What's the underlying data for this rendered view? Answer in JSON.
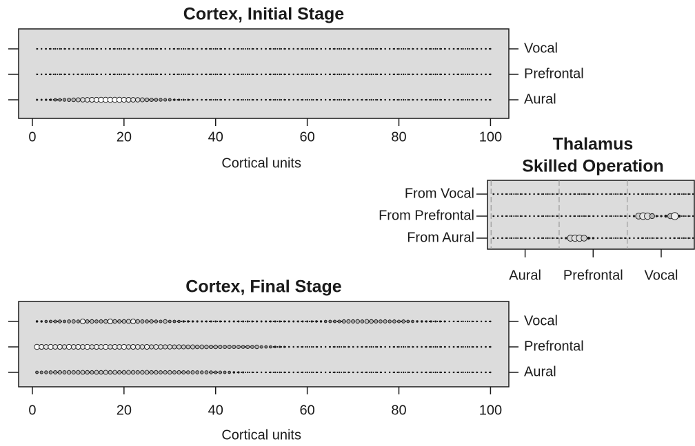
{
  "chart_data": [
    {
      "type": "dotplot",
      "title": "Cortex, Initial Stage",
      "x_label": "Cortical units",
      "xlim": [
        -3,
        104
      ],
      "xticks": [
        0,
        20,
        40,
        60,
        80,
        100
      ],
      "color_low": "#1a1a1a",
      "color_high": "#ffffff",
      "panel_color": "#dcdcdc",
      "x": [
        1,
        2,
        3,
        4,
        5,
        6,
        7,
        8,
        9,
        10,
        11,
        12,
        13,
        14,
        15,
        16,
        17,
        18,
        19,
        20,
        21,
        22,
        23,
        24,
        25,
        26,
        27,
        28,
        29,
        30,
        31,
        32,
        33,
        34,
        35,
        36,
        37,
        38,
        39,
        40,
        41,
        42,
        43,
        44,
        45,
        46,
        47,
        48,
        49,
        50,
        51,
        52,
        53,
        54,
        55,
        56,
        57,
        58,
        59,
        60,
        61,
        62,
        63,
        64,
        65,
        66,
        67,
        68,
        69,
        70,
        71,
        72,
        73,
        74,
        75,
        76,
        77,
        78,
        79,
        80,
        81,
        82,
        83,
        84,
        85,
        86,
        87,
        88,
        89,
        90,
        91,
        92,
        93,
        94,
        95,
        96,
        97,
        98,
        99,
        100
      ],
      "series": [
        {
          "name": "Aural",
          "values": [
            0.1,
            0.1,
            0.15,
            0.2,
            0.3,
            0.35,
            0.4,
            0.5,
            0.6,
            0.7,
            0.8,
            0.85,
            0.9,
            0.95,
            1,
            1,
            1,
            1,
            1,
            0.95,
            0.9,
            0.85,
            0.8,
            0.7,
            0.6,
            0.5,
            0.45,
            0.4,
            0.35,
            0.3,
            0.2,
            0.15,
            0.1,
            0.1,
            0.05,
            0,
            0,
            0,
            0,
            0,
            0,
            0,
            0,
            0,
            0,
            0,
            0,
            0,
            0,
            0,
            0,
            0,
            0,
            0,
            0,
            0,
            0,
            0,
            0,
            0,
            0,
            0,
            0,
            0,
            0,
            0,
            0,
            0,
            0,
            0,
            0,
            0,
            0,
            0,
            0,
            0,
            0,
            0,
            0,
            0,
            0,
            0,
            0,
            0,
            0,
            0,
            0,
            0,
            0,
            0,
            0,
            0,
            0,
            0,
            0,
            0,
            0,
            0,
            0,
            0
          ]
        },
        {
          "name": "Prefrontal",
          "values": [
            0,
            0,
            0,
            0,
            0,
            0,
            0,
            0,
            0,
            0,
            0,
            0,
            0,
            0,
            0,
            0,
            0,
            0,
            0,
            0,
            0,
            0,
            0,
            0,
            0,
            0,
            0,
            0,
            0,
            0,
            0,
            0,
            0,
            0,
            0,
            0,
            0,
            0,
            0,
            0,
            0,
            0,
            0,
            0,
            0,
            0,
            0,
            0,
            0,
            0,
            0,
            0,
            0,
            0,
            0,
            0,
            0,
            0,
            0,
            0,
            0,
            0,
            0,
            0,
            0,
            0,
            0,
            0,
            0,
            0,
            0,
            0,
            0,
            0,
            0,
            0,
            0,
            0,
            0,
            0,
            0,
            0,
            0,
            0,
            0,
            0,
            0,
            0,
            0,
            0,
            0,
            0,
            0,
            0,
            0,
            0,
            0,
            0,
            0,
            0
          ]
        },
        {
          "name": "Vocal",
          "values": [
            0,
            0,
            0,
            0,
            0,
            0,
            0,
            0,
            0,
            0,
            0,
            0,
            0,
            0,
            0,
            0,
            0,
            0,
            0,
            0,
            0,
            0,
            0,
            0,
            0,
            0,
            0,
            0,
            0,
            0,
            0,
            0,
            0,
            0,
            0,
            0,
            0,
            0,
            0,
            0,
            0,
            0,
            0,
            0,
            0,
            0,
            0,
            0,
            0,
            0,
            0,
            0,
            0,
            0,
            0,
            0,
            0,
            0,
            0,
            0,
            0,
            0,
            0,
            0,
            0,
            0,
            0,
            0,
            0,
            0,
            0,
            0,
            0,
            0,
            0,
            0,
            0,
            0,
            0,
            0,
            0,
            0,
            0,
            0,
            0,
            0,
            0,
            0,
            0,
            0,
            0,
            0,
            0,
            0,
            0,
            0,
            0,
            0,
            0,
            0
          ]
        }
      ]
    },
    {
      "type": "dotplot",
      "title": "Thalamus",
      "subtitle": "Skilled Operation",
      "xlim": [
        -0.3,
        45.3
      ],
      "x_groups": [
        "Aural",
        "Prefrontal",
        "Vocal"
      ],
      "color_low": "#1a1a1a",
      "color_high": "#ffffff",
      "panel_color": "#dcdcdc",
      "x": [
        1,
        2,
        3,
        4,
        5,
        6,
        7,
        8,
        9,
        10,
        11,
        12,
        13,
        14,
        15,
        16,
        17,
        18,
        19,
        20,
        21,
        22,
        23,
        24,
        25,
        26,
        27,
        28,
        29,
        30,
        31,
        32,
        33,
        34,
        35,
        36,
        37,
        38,
        39,
        40,
        41,
        42,
        43,
        44,
        45
      ],
      "series": [
        {
          "name": "From Aural",
          "values": [
            0,
            0,
            0,
            0,
            0,
            0,
            0,
            0,
            0,
            0,
            0,
            0,
            0,
            0,
            0,
            0,
            0.1,
            0.75,
            0.8,
            0.8,
            0.7,
            0.2,
            0.1,
            0,
            0,
            0,
            0,
            0,
            0,
            0,
            0,
            0,
            0,
            0,
            0,
            0,
            0,
            0,
            0,
            0,
            0,
            0,
            0,
            0,
            0
          ]
        },
        {
          "name": "From Prefrontal",
          "values": [
            0,
            0,
            0,
            0,
            0,
            0,
            0,
            0,
            0,
            0,
            0,
            0,
            0,
            0,
            0,
            0,
            0,
            0,
            0,
            0,
            0,
            0,
            0,
            0,
            0,
            0,
            0,
            0,
            0,
            0,
            0,
            0.1,
            0.7,
            0.85,
            0.8,
            0.55,
            0.1,
            0.1,
            0.2,
            0.6,
            0.9,
            0.2,
            0,
            0,
            0
          ]
        },
        {
          "name": "From Vocal",
          "values": [
            0,
            0,
            0,
            0,
            0,
            0,
            0,
            0,
            0,
            0,
            0,
            0,
            0,
            0,
            0,
            0,
            0,
            0,
            0,
            0,
            0,
            0,
            0,
            0,
            0,
            0,
            0,
            0,
            0,
            0,
            0,
            0,
            0,
            0,
            0,
            0,
            0,
            0,
            0,
            0,
            0,
            0,
            0,
            0,
            0
          ]
        }
      ]
    },
    {
      "type": "dotplot",
      "title": "Cortex, Final Stage",
      "x_label": "Cortical units",
      "xlim": [
        -3,
        104
      ],
      "xticks": [
        0,
        20,
        40,
        60,
        80,
        100
      ],
      "color_low": "#1a1a1a",
      "color_high": "#ffffff",
      "panel_color": "#dcdcdc",
      "x": [
        1,
        2,
        3,
        4,
        5,
        6,
        7,
        8,
        9,
        10,
        11,
        12,
        13,
        14,
        15,
        16,
        17,
        18,
        19,
        20,
        21,
        22,
        23,
        24,
        25,
        26,
        27,
        28,
        29,
        30,
        31,
        32,
        33,
        34,
        35,
        36,
        37,
        38,
        39,
        40,
        41,
        42,
        43,
        44,
        45,
        46,
        47,
        48,
        49,
        50,
        51,
        52,
        53,
        54,
        55,
        56,
        57,
        58,
        59,
        60,
        61,
        62,
        63,
        64,
        65,
        66,
        67,
        68,
        69,
        70,
        71,
        72,
        73,
        74,
        75,
        76,
        77,
        78,
        79,
        80,
        81,
        82,
        83,
        84,
        85,
        86,
        87,
        88,
        89,
        90,
        91,
        92,
        93,
        94,
        95,
        96,
        97,
        98,
        99,
        100
      ],
      "series": [
        {
          "name": "Aural",
          "values": [
            0.3,
            0.35,
            0.4,
            0.45,
            0.5,
            0.55,
            0.5,
            0.6,
            0.55,
            0.6,
            0.65,
            0.6,
            0.55,
            0.65,
            0.6,
            0.7,
            0.6,
            0.65,
            0.55,
            0.6,
            0.65,
            0.6,
            0.55,
            0.6,
            0.65,
            0.55,
            0.6,
            0.5,
            0.55,
            0.6,
            0.5,
            0.55,
            0.5,
            0.45,
            0.5,
            0.45,
            0.4,
            0.45,
            0.4,
            0.35,
            0.35,
            0.3,
            0.25,
            0.2,
            0.15,
            0.1,
            0,
            0,
            0,
            0,
            0,
            0,
            0,
            0,
            0,
            0,
            0,
            0,
            0,
            0,
            0,
            0,
            0,
            0,
            0,
            0,
            0,
            0,
            0,
            0,
            0,
            0,
            0,
            0,
            0,
            0,
            0,
            0,
            0,
            0,
            0,
            0,
            0,
            0,
            0,
            0,
            0,
            0,
            0,
            0,
            0,
            0,
            0,
            0,
            0,
            0,
            0,
            0,
            0,
            0
          ]
        },
        {
          "name": "Prefrontal",
          "values": [
            1,
            0.9,
            0.85,
            0.95,
            0.85,
            0.9,
            0.8,
            0.95,
            0.85,
            0.9,
            0.85,
            0.95,
            0.8,
            0.9,
            0.85,
            0.95,
            0.8,
            0.9,
            0.85,
            0.95,
            0.8,
            0.9,
            0.85,
            0.8,
            0.9,
            0.75,
            0.85,
            0.8,
            0.75,
            0.8,
            0.7,
            0.75,
            0.7,
            0.65,
            0.7,
            0.6,
            0.65,
            0.6,
            0.55,
            0.6,
            0.55,
            0.5,
            0.55,
            0.5,
            0.5,
            0.45,
            0.5,
            0.45,
            0.6,
            0.35,
            0.3,
            0.25,
            0.2,
            0.15,
            0.1,
            0,
            0,
            0,
            0,
            0,
            0,
            0,
            0,
            0,
            0,
            0,
            0,
            0,
            0,
            0,
            0,
            0,
            0,
            0,
            0,
            0,
            0,
            0,
            0,
            0,
            0,
            0,
            0,
            0,
            0,
            0,
            0,
            0,
            0,
            0,
            0,
            0,
            0,
            0,
            0,
            0,
            0,
            0,
            0,
            0
          ]
        },
        {
          "name": "Vocal",
          "values": [
            0.2,
            0.2,
            0.25,
            0.3,
            0.35,
            0.4,
            0.3,
            0.45,
            0.5,
            0.4,
            0.9,
            0.5,
            0.6,
            0.45,
            0.5,
            0.6,
            0.9,
            0.6,
            0.5,
            0.6,
            0.7,
            0.9,
            0.6,
            0.5,
            0.45,
            0.5,
            0.4,
            0.35,
            0.6,
            0.3,
            0.3,
            0.25,
            0.2,
            0.2,
            0.15,
            0.15,
            0.1,
            0.1,
            0.1,
            0.1,
            0.1,
            0.1,
            0.1,
            0.1,
            0.1,
            0.1,
            0.1,
            0.1,
            0.1,
            0.1,
            0.1,
            0.1,
            0.1,
            0.1,
            0.1,
            0.1,
            0.1,
            0.1,
            0.1,
            0.1,
            0.15,
            0.2,
            0.2,
            0.25,
            0.3,
            0.3,
            0.35,
            0.5,
            0.55,
            0.5,
            0.6,
            0.45,
            0.65,
            0.6,
            0.5,
            0.45,
            0.5,
            0.4,
            0.45,
            0.35,
            0.45,
            0.3,
            0.25,
            0.2,
            0.2,
            0.15,
            0.15,
            0.1,
            0.1,
            0.1,
            0,
            0,
            0,
            0,
            0,
            0,
            0,
            0,
            0,
            0
          ]
        }
      ]
    }
  ]
}
